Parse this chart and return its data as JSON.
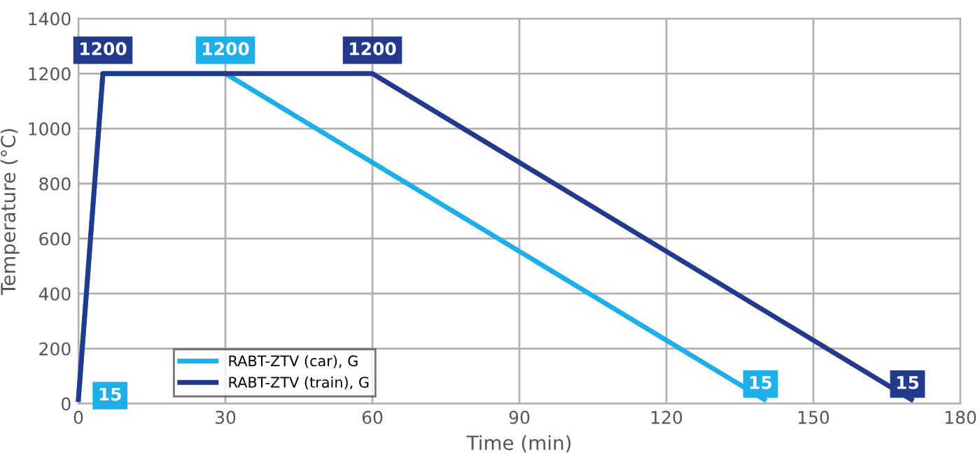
{
  "chart_data": {
    "type": "line",
    "xlabel": "Time (min)",
    "ylabel": "Temperature (°C)",
    "xlim": [
      0,
      180
    ],
    "xticks": [
      0,
      30,
      60,
      90,
      120,
      150,
      180
    ],
    "ylim": [
      0,
      1400
    ],
    "yticks": [
      0,
      200,
      400,
      600,
      800,
      1000,
      1200,
      1400
    ],
    "grid": true,
    "legend": "bottom left",
    "marker": "none",
    "line_style": "solid",
    "series": [
      {
        "name": "RABT-ZTV (car), G",
        "color": "#1eaee8",
        "x": [
          0,
          5,
          30,
          140
        ],
        "values": [
          15,
          1200,
          1200,
          15
        ],
        "value_labels": [
          "15",
          null,
          "1200",
          "15"
        ]
      },
      {
        "name": "RABT-ZTV (train), G",
        "color": "#233a8c",
        "x": [
          0,
          5,
          60,
          170
        ],
        "values": [
          15,
          1200,
          1200,
          15
        ],
        "value_labels": [
          null,
          "1200",
          "1200",
          "15"
        ]
      }
    ]
  }
}
